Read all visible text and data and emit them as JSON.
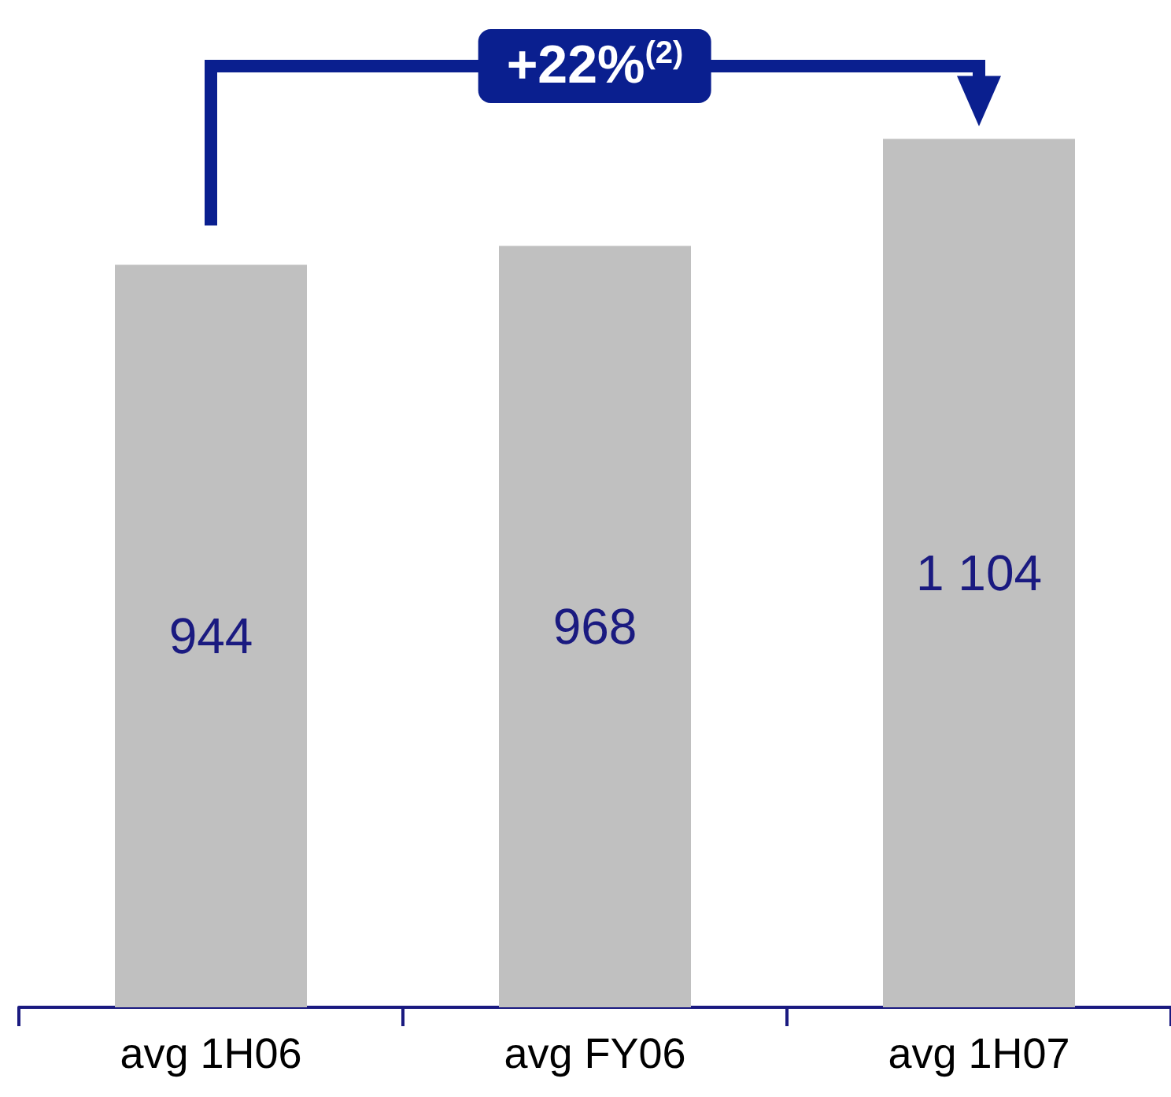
{
  "chart_data": {
    "type": "bar",
    "categories": [
      "avg 1H06",
      "avg FY06",
      "avg 1H07"
    ],
    "values": [
      944,
      968,
      1104
    ],
    "color": "#c0c0c0",
    "value_labels": [
      "944",
      "968",
      "1 104"
    ],
    "annotations": [
      "+22%$^{(2)}$"
    ]
  }
}
